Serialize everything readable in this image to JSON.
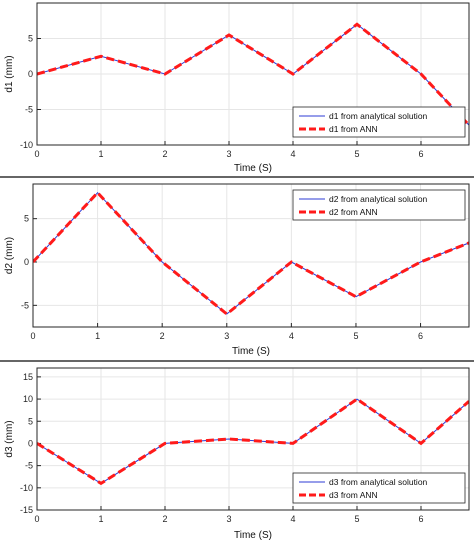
{
  "colors": {
    "analytical": "#2d3bd6",
    "ann": "#ff1a1a",
    "grid": "#e6e6e6",
    "axis": "#262626",
    "separator": "#333333"
  },
  "chart_data": [
    {
      "type": "line",
      "xlabel": "Time (S)",
      "ylabel": "d1 (mm)",
      "xlim": [
        0,
        6.75
      ],
      "ylim": [
        -10,
        10
      ],
      "x_ticks": [
        "0",
        "1",
        "2",
        "3",
        "4",
        "5",
        "6"
      ],
      "y_ticks": [
        "-10",
        "-5",
        "0",
        "5"
      ],
      "grid": true,
      "legend_position": "bottom-right",
      "x": [
        0,
        1,
        2,
        3,
        4,
        5,
        6,
        6.75
      ],
      "series": [
        {
          "name": "d1 from analytical solution",
          "style": "solid",
          "values": [
            0,
            2.5,
            0,
            5.5,
            0,
            7,
            0,
            -7.2
          ]
        },
        {
          "name": "d1 from ANN",
          "style": "dashed",
          "values": [
            0,
            2.5,
            0,
            5.5,
            0,
            7,
            0,
            -7.2
          ]
        }
      ]
    },
    {
      "type": "line",
      "xlabel": "Time (S)",
      "ylabel": "d2 (mm)",
      "xlim": [
        0,
        6.75
      ],
      "ylim": [
        -7.5,
        9
      ],
      "x_ticks": [
        "0",
        "1",
        "2",
        "3",
        "4",
        "5",
        "6"
      ],
      "y_ticks": [
        "-5",
        "0",
        "5"
      ],
      "grid": true,
      "legend_position": "top-right",
      "x": [
        0,
        1,
        2,
        3,
        4,
        5,
        6,
        6.75
      ],
      "series": [
        {
          "name": "d2 from analytical solution",
          "style": "solid",
          "values": [
            0,
            8,
            0,
            -6,
            0,
            -4,
            0,
            2.2
          ]
        },
        {
          "name": "d2 from ANN",
          "style": "dashed",
          "values": [
            0,
            8,
            0,
            -6,
            0,
            -4,
            0,
            2.2
          ]
        }
      ]
    },
    {
      "type": "line",
      "xlabel": "Time (S)",
      "ylabel": "d3 (mm)",
      "xlim": [
        0,
        6.75
      ],
      "ylim": [
        -15,
        17
      ],
      "x_ticks": [
        "0",
        "1",
        "2",
        "3",
        "4",
        "5",
        "6"
      ],
      "y_ticks": [
        "-15",
        "-10",
        "-5",
        "0",
        "5",
        "10",
        "15"
      ],
      "grid": true,
      "legend_position": "bottom-right",
      "x": [
        0,
        1,
        2,
        3,
        4,
        5,
        6,
        6.75
      ],
      "series": [
        {
          "name": "d3 from analytical solution",
          "style": "solid",
          "values": [
            0,
            -9,
            0,
            1,
            0,
            10,
            0,
            9.5
          ]
        },
        {
          "name": "d3 from ANN",
          "style": "dashed",
          "values": [
            0,
            -9,
            0,
            1,
            0,
            10,
            0,
            9.5
          ]
        }
      ]
    }
  ]
}
